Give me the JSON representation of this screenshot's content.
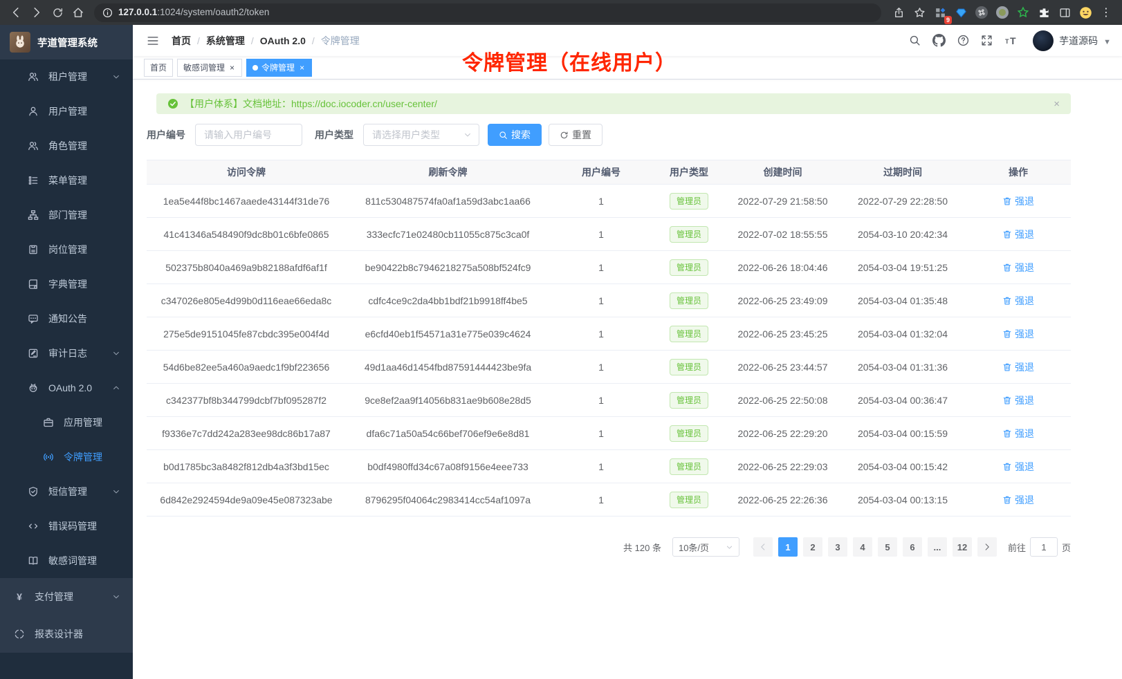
{
  "browser": {
    "url_host": "127.0.0.1",
    "url_path": ":1024/system/oauth2/token",
    "extension_badge": "9"
  },
  "sidebar": {
    "logo_title": "芋道管理系统",
    "items": [
      {
        "id": "tenant",
        "label": "租户管理",
        "icon": "users",
        "level": 1,
        "arrow": "down"
      },
      {
        "id": "user",
        "label": "用户管理",
        "icon": "user",
        "level": 1
      },
      {
        "id": "role",
        "label": "角色管理",
        "icon": "users",
        "level": 1
      },
      {
        "id": "menu",
        "label": "菜单管理",
        "icon": "menu",
        "level": 1
      },
      {
        "id": "dept",
        "label": "部门管理",
        "icon": "tree",
        "level": 1
      },
      {
        "id": "post",
        "label": "岗位管理",
        "icon": "badge",
        "level": 1
      },
      {
        "id": "dict",
        "label": "字典管理",
        "icon": "dict",
        "level": 1
      },
      {
        "id": "notice",
        "label": "通知公告",
        "icon": "message",
        "level": 1
      },
      {
        "id": "audit-log",
        "label": "审计日志",
        "icon": "log",
        "level": 1,
        "arrow": "down"
      },
      {
        "id": "oauth2",
        "label": "OAuth 2.0",
        "icon": "robot",
        "level": 1,
        "arrow": "up"
      },
      {
        "id": "oauth2-app",
        "label": "应用管理",
        "icon": "app",
        "level": 2
      },
      {
        "id": "oauth2-token",
        "label": "令牌管理",
        "icon": "token",
        "level": 2,
        "active": true
      },
      {
        "id": "sms",
        "label": "短信管理",
        "icon": "sms",
        "level": 1,
        "arrow": "down"
      },
      {
        "id": "errcode",
        "label": "错误码管理",
        "icon": "code",
        "level": 1
      },
      {
        "id": "sensitive-word",
        "label": "敏感词管理",
        "icon": "book",
        "level": 1
      },
      {
        "id": "pay",
        "label": "支付管理",
        "icon": "pay",
        "level": 0,
        "arrow": "down"
      },
      {
        "id": "report",
        "label": "报表设计器",
        "icon": "report",
        "level": 0
      }
    ]
  },
  "header": {
    "breadcrumb": [
      "首页",
      "系统管理",
      "OAuth 2.0",
      "令牌管理"
    ],
    "user_name": "芋道源码"
  },
  "tabs": [
    {
      "label": "首页",
      "closable": false,
      "active": false
    },
    {
      "label": "敏感词管理",
      "closable": true,
      "active": false
    },
    {
      "label": "令牌管理",
      "closable": true,
      "active": true
    }
  ],
  "annotation": "令牌管理（在线用户）",
  "alert": {
    "text": "【用户体系】文档地址：",
    "link": "https://doc.iocoder.cn/user-center/"
  },
  "filters": {
    "user_id_label": "用户编号",
    "user_id_placeholder": "请输入用户编号",
    "user_type_label": "用户类型",
    "user_type_placeholder": "请选择用户类型",
    "search_label": "搜索",
    "reset_label": "重置"
  },
  "table": {
    "columns": [
      "访问令牌",
      "刷新令牌",
      "用户编号",
      "用户类型",
      "创建时间",
      "过期时间",
      "操作"
    ],
    "action_label": "强退",
    "rows": [
      {
        "access": "1ea5e44f8bc1467aaede43144f31de76",
        "refresh": "811c530487574fa0af1a59d3abc1aa66",
        "user_id": "1",
        "user_type": "管理员",
        "created": "2022-07-29 21:58:50",
        "expires": "2022-07-29 22:28:50"
      },
      {
        "access": "41c41346a548490f9dc8b01c6bfe0865",
        "refresh": "333ecfc71e02480cb11055c875c3ca0f",
        "user_id": "1",
        "user_type": "管理员",
        "created": "2022-07-02 18:55:55",
        "expires": "2054-03-10 20:42:34"
      },
      {
        "access": "502375b8040a469a9b82188afdf6af1f",
        "refresh": "be90422b8c7946218275a508bf524fc9",
        "user_id": "1",
        "user_type": "管理员",
        "created": "2022-06-26 18:04:46",
        "expires": "2054-03-04 19:51:25"
      },
      {
        "access": "c347026e805e4d99b0d116eae66eda8c",
        "refresh": "cdfc4ce9c2da4bb1bdf21b9918ff4be5",
        "user_id": "1",
        "user_type": "管理员",
        "created": "2022-06-25 23:49:09",
        "expires": "2054-03-04 01:35:48"
      },
      {
        "access": "275e5de9151045fe87cbdc395e004f4d",
        "refresh": "e6cfd40eb1f54571a31e775e039c4624",
        "user_id": "1",
        "user_type": "管理员",
        "created": "2022-06-25 23:45:25",
        "expires": "2054-03-04 01:32:04"
      },
      {
        "access": "54d6be82ee5a460a9aedc1f9bf223656",
        "refresh": "49d1aa46d1454fbd87591444423be9fa",
        "user_id": "1",
        "user_type": "管理员",
        "created": "2022-06-25 23:44:57",
        "expires": "2054-03-04 01:31:36"
      },
      {
        "access": "c342377bf8b344799dcbf7bf095287f2",
        "refresh": "9ce8ef2aa9f14056b831ae9b608e28d5",
        "user_id": "1",
        "user_type": "管理员",
        "created": "2022-06-25 22:50:08",
        "expires": "2054-03-04 00:36:47"
      },
      {
        "access": "f9336e7c7dd242a283ee98dc86b17a87",
        "refresh": "dfa6c71a50a54c66bef706ef9e6e8d81",
        "user_id": "1",
        "user_type": "管理员",
        "created": "2022-06-25 22:29:20",
        "expires": "2054-03-04 00:15:59"
      },
      {
        "access": "b0d1785bc3a8482f812db4a3f3bd15ec",
        "refresh": "b0df4980ffd34c67a08f9156e4eee733",
        "user_id": "1",
        "user_type": "管理员",
        "created": "2022-06-25 22:29:03",
        "expires": "2054-03-04 00:15:42"
      },
      {
        "access": "6d842e2924594de9a09e45e087323abe",
        "refresh": "8796295f04064c2983414cc54af1097a",
        "user_id": "1",
        "user_type": "管理员",
        "created": "2022-06-25 22:26:36",
        "expires": "2054-03-04 00:13:15"
      }
    ]
  },
  "pagination": {
    "total_label": "共 120 条",
    "page_size": "10条/页",
    "pages": [
      "1",
      "2",
      "3",
      "4",
      "5",
      "6",
      "...",
      "12"
    ],
    "active_page": "1",
    "goto_label": "前往",
    "goto_value": "1",
    "page_unit": "页"
  },
  "colors": {
    "accent": "#409eff",
    "success": "#67c23a",
    "annotation_red": "#ff2600"
  }
}
